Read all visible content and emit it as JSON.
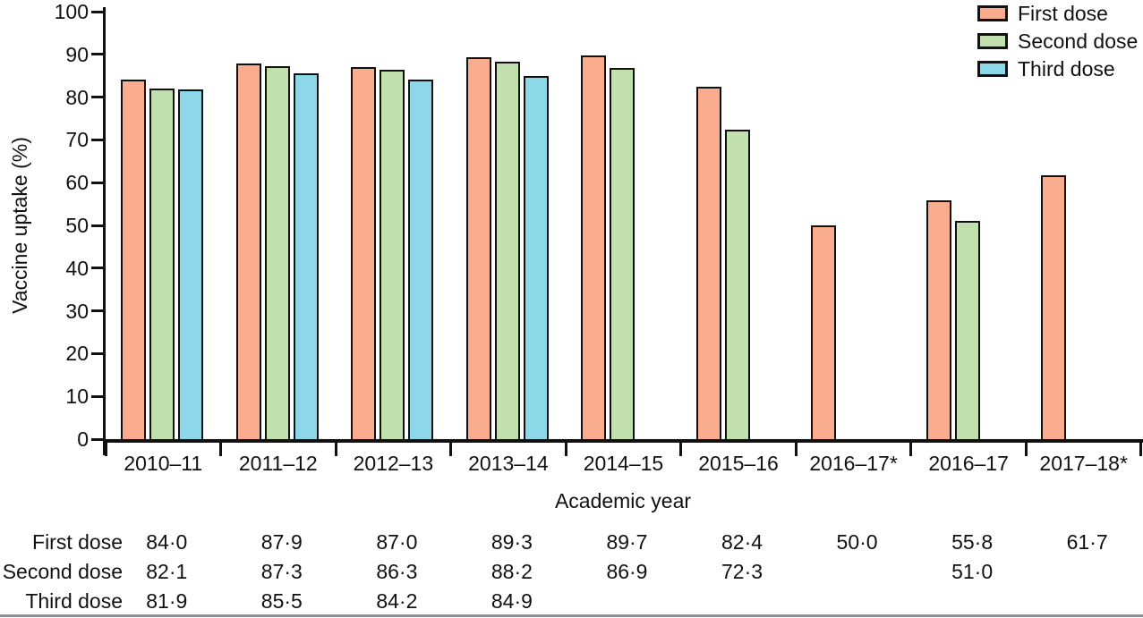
{
  "chart_data": {
    "type": "bar",
    "title": "",
    "categories": [
      "2010–11",
      "2011–12",
      "2012–13",
      "2013–14",
      "2014–15",
      "2015–16",
      "2016–17*",
      "2016–17",
      "2017–18*"
    ],
    "series": [
      {
        "name": "First dose",
        "color": "#FAAD8E",
        "values": [
          84.0,
          87.9,
          87.0,
          89.3,
          89.7,
          82.4,
          50.0,
          55.8,
          61.7
        ]
      },
      {
        "name": "Second dose",
        "color": "#C2E0AD",
        "values": [
          82.1,
          87.3,
          86.3,
          88.2,
          86.9,
          72.3,
          null,
          51.0,
          null
        ]
      },
      {
        "name": "Third dose",
        "color": "#8CD8E8",
        "values": [
          81.9,
          85.5,
          84.2,
          84.9,
          null,
          null,
          null,
          null,
          null
        ]
      }
    ],
    "xlabel": "Academic year",
    "ylabel": "Vaccine uptake (%)",
    "ylim": [
      0,
      100
    ],
    "yticks": [
      0,
      10,
      20,
      30,
      40,
      50,
      60,
      70,
      80,
      90,
      100
    ],
    "legend_position": "top-right",
    "grid": false,
    "bar_border_color": "#111111",
    "axis_color": "#111111"
  },
  "table": {
    "row_labels": [
      "First dose",
      "Second dose",
      "Third dose"
    ],
    "rows": [
      [
        "84·0",
        "87·9",
        "87·0",
        "89·3",
        "89·7",
        "82·4",
        "50·0",
        "55·8",
        "61·7"
      ],
      [
        "82·1",
        "87·3",
        "86·3",
        "88·2",
        "86·9",
        "72·3",
        "",
        "51·0",
        ""
      ],
      [
        "81·9",
        "85·5",
        "84·2",
        "84·9",
        "",
        "",
        "",
        "",
        ""
      ]
    ]
  }
}
